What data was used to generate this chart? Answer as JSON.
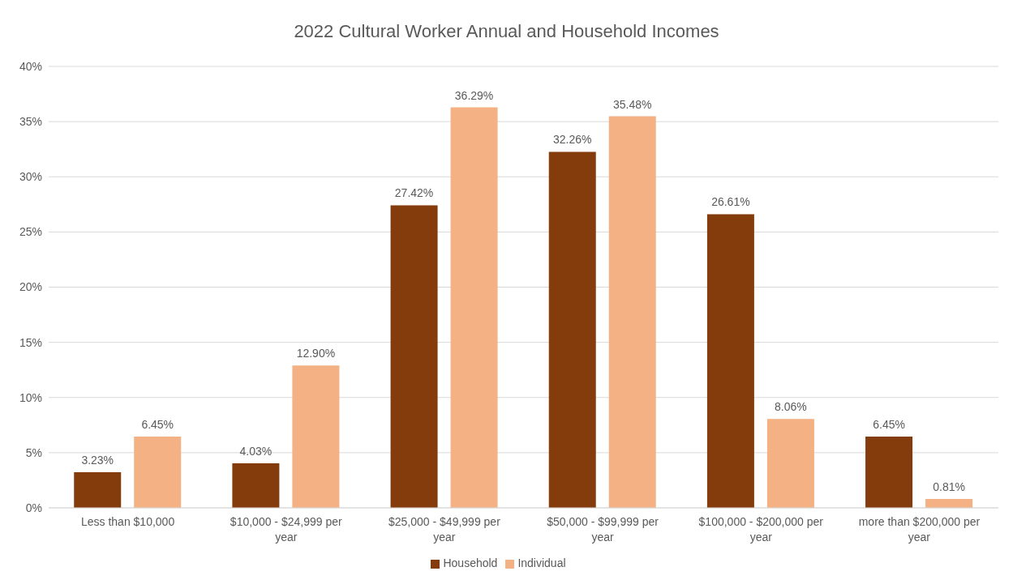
{
  "chart_data": {
    "type": "bar",
    "title": "2022 Cultural Worker Annual and Household Incomes",
    "categories": [
      "Less than $10,000",
      "$10,000 - $24,999 per year",
      "$25,000 - $49,999 per year",
      "$50,000 - $99,999 per year",
      "$100,000 - $200,000 per year",
      "more than $200,000 per year"
    ],
    "series": [
      {
        "name": "Household",
        "color": "#843c0c",
        "values": [
          3.23,
          4.03,
          27.42,
          32.26,
          26.61,
          6.45
        ],
        "value_labels": [
          "3.23%",
          "4.03%",
          "27.42%",
          "32.26%",
          "26.61%",
          "6.45%"
        ]
      },
      {
        "name": "Individual",
        "color": "#f4b183",
        "values": [
          6.45,
          12.9,
          36.29,
          35.48,
          8.06,
          0.81
        ],
        "value_labels": [
          "6.45%",
          "12.90%",
          "36.29%",
          "35.48%",
          "8.06%",
          "0.81%"
        ]
      }
    ],
    "ylim": [
      0,
      40
    ],
    "yticks": [
      {
        "value": 0,
        "label": "0%"
      },
      {
        "value": 5,
        "label": "5%"
      },
      {
        "value": 10,
        "label": "10%"
      },
      {
        "value": 15,
        "label": "15%"
      },
      {
        "value": 20,
        "label": "20%"
      },
      {
        "value": 25,
        "label": "25%"
      },
      {
        "value": 30,
        "label": "30%"
      },
      {
        "value": 35,
        "label": "35%"
      },
      {
        "value": 40,
        "label": "40%"
      }
    ],
    "grid": "y",
    "legend": "bottom"
  }
}
